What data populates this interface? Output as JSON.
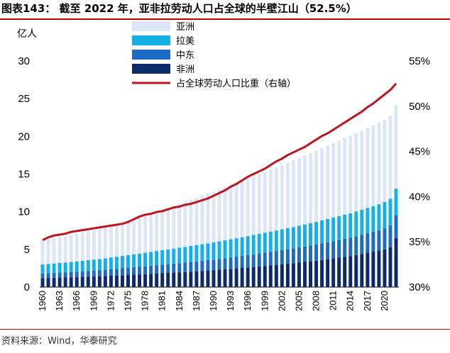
{
  "header": {
    "title": "图表143： 截至 2022 年，亚非拉劳动人口占全球的半壁江山（52.5%）"
  },
  "footer": {
    "source": "资料来源：Wind，华泰研究"
  },
  "colors": {
    "asia": "#dce6f4",
    "latam": "#15b0e8",
    "mideast": "#1b6cc2",
    "africa": "#0d2a6b",
    "share_line": "#c0141c",
    "rule": "#c00000"
  },
  "chart_data": {
    "type": "bar",
    "stacked": true,
    "x": [
      1960,
      1961,
      1962,
      1963,
      1964,
      1965,
      1966,
      1967,
      1968,
      1969,
      1970,
      1971,
      1972,
      1973,
      1974,
      1975,
      1976,
      1977,
      1978,
      1979,
      1980,
      1981,
      1982,
      1983,
      1984,
      1985,
      1986,
      1987,
      1988,
      1989,
      1990,
      1991,
      1992,
      1993,
      1994,
      1995,
      1996,
      1997,
      1998,
      1999,
      2000,
      2001,
      2002,
      2003,
      2004,
      2005,
      2006,
      2007,
      2008,
      2009,
      2010,
      2011,
      2012,
      2013,
      2014,
      2015,
      2016,
      2017,
      2018,
      2019,
      2020,
      2021,
      2022
    ],
    "x_tick_labels": [
      "1960",
      "1963",
      "1966",
      "1969",
      "1972",
      "1975",
      "1978",
      "1981",
      "1984",
      "1987",
      "1990",
      "1993",
      "1996",
      "1999",
      "2002",
      "2005",
      "2008",
      "2011",
      "2014",
      "2017",
      "2020"
    ],
    "ylabel": "亿人",
    "ylim": [
      0,
      30
    ],
    "y_ticks": [
      0,
      5,
      10,
      15,
      20,
      25,
      30
    ],
    "y2lim": [
      30,
      55
    ],
    "y2_ticks": [
      "30%",
      "35%",
      "40%",
      "45%",
      "50%",
      "55%"
    ],
    "legend_position": "top-center",
    "series": [
      {
        "name": "亚洲",
        "axis": "left",
        "values": [
          3.2,
          3.3,
          3.4,
          3.45,
          3.5,
          3.6,
          3.7,
          3.75,
          3.85,
          3.95,
          4.05,
          4.15,
          4.25,
          4.35,
          4.45,
          4.55,
          4.65,
          4.8,
          4.95,
          5.1,
          5.25,
          5.4,
          5.55,
          5.7,
          5.85,
          6.0,
          6.15,
          6.3,
          6.45,
          6.6,
          6.75,
          6.9,
          7.05,
          7.2,
          7.35,
          7.5,
          7.65,
          7.8,
          7.95,
          8.1,
          8.25,
          8.4,
          8.55,
          8.7,
          8.85,
          9.0,
          9.15,
          9.3,
          9.45,
          9.6,
          9.75,
          9.9,
          10.05,
          10.2,
          10.3,
          10.4,
          10.5,
          10.6,
          10.7,
          10.8,
          10.9,
          11.0,
          11.1
        ]
      },
      {
        "name": "拉美",
        "axis": "left",
        "values": [
          1.2,
          1.22,
          1.25,
          1.28,
          1.3,
          1.33,
          1.36,
          1.39,
          1.42,
          1.45,
          1.48,
          1.52,
          1.56,
          1.6,
          1.64,
          1.68,
          1.72,
          1.76,
          1.8,
          1.84,
          1.88,
          1.92,
          1.96,
          2.0,
          2.04,
          2.08,
          2.12,
          2.16,
          2.2,
          2.24,
          2.28,
          2.32,
          2.36,
          2.4,
          2.44,
          2.48,
          2.52,
          2.56,
          2.6,
          2.64,
          2.68,
          2.72,
          2.76,
          2.8,
          2.84,
          2.88,
          2.92,
          2.96,
          3.0,
          3.04,
          3.08,
          3.12,
          3.16,
          3.2,
          3.24,
          3.28,
          3.32,
          3.36,
          3.4,
          3.44,
          3.48,
          3.52,
          3.56
        ]
      },
      {
        "name": "中东",
        "axis": "left",
        "values": [
          0.6,
          0.62,
          0.64,
          0.66,
          0.68,
          0.7,
          0.72,
          0.74,
          0.76,
          0.78,
          0.8,
          0.83,
          0.86,
          0.89,
          0.92,
          0.95,
          0.98,
          1.01,
          1.04,
          1.07,
          1.1,
          1.13,
          1.16,
          1.19,
          1.22,
          1.25,
          1.28,
          1.31,
          1.34,
          1.37,
          1.4,
          1.44,
          1.48,
          1.52,
          1.56,
          1.6,
          1.64,
          1.68,
          1.72,
          1.76,
          1.8,
          1.84,
          1.88,
          1.92,
          1.96,
          2.0,
          2.05,
          2.1,
          2.15,
          2.2,
          2.25,
          2.3,
          2.35,
          2.4,
          2.45,
          2.5,
          2.55,
          2.6,
          2.65,
          2.7,
          2.8,
          2.9,
          3.0
        ]
      },
      {
        "name": "非洲",
        "axis": "left",
        "values": [
          1.2,
          1.22,
          1.24,
          1.26,
          1.28,
          1.3,
          1.33,
          1.36,
          1.39,
          1.42,
          1.45,
          1.48,
          1.51,
          1.54,
          1.57,
          1.6,
          1.64,
          1.68,
          1.72,
          1.76,
          1.8,
          1.84,
          1.88,
          1.92,
          1.96,
          2.0,
          2.05,
          2.1,
          2.15,
          2.2,
          2.25,
          2.3,
          2.36,
          2.42,
          2.48,
          2.54,
          2.6,
          2.67,
          2.74,
          2.81,
          2.88,
          2.95,
          3.02,
          3.1,
          3.18,
          3.26,
          3.34,
          3.42,
          3.5,
          3.6,
          3.7,
          3.8,
          3.9,
          4.0,
          4.1,
          4.25,
          4.4,
          4.55,
          4.7,
          4.85,
          5.0,
          5.3,
          6.5
        ]
      },
      {
        "name": "占全球劳动人口比重（右轴）",
        "axis": "right",
        "type": "line",
        "values": [
          35.2,
          35.5,
          35.7,
          35.8,
          35.9,
          36.1,
          36.2,
          36.3,
          36.4,
          36.5,
          36.6,
          36.7,
          36.8,
          36.9,
          37.0,
          37.2,
          37.5,
          37.8,
          38.0,
          38.1,
          38.3,
          38.4,
          38.6,
          38.8,
          38.9,
          39.1,
          39.2,
          39.4,
          39.6,
          39.8,
          40.1,
          40.4,
          40.7,
          41.1,
          41.4,
          41.8,
          42.2,
          42.5,
          42.8,
          43.1,
          43.5,
          43.9,
          44.2,
          44.6,
          44.9,
          45.2,
          45.5,
          45.9,
          46.3,
          46.7,
          47.0,
          47.4,
          47.8,
          48.2,
          48.6,
          49.0,
          49.4,
          49.9,
          50.3,
          50.8,
          51.3,
          51.8,
          52.5
        ]
      }
    ]
  }
}
